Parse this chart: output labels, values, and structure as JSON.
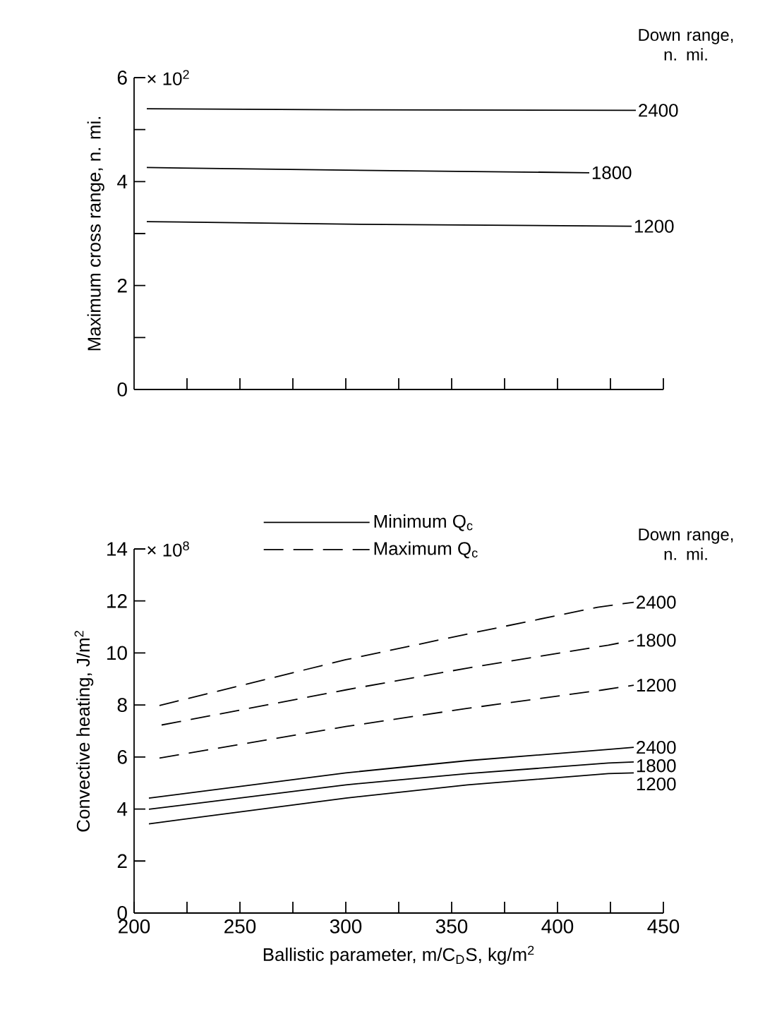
{
  "chart_data": [
    {
      "type": "line",
      "ylabel": "Maximum cross range, n. mi.",
      "legend_title": "Down range, n. mi.",
      "annotations": [
        "× 10$^{2}$"
      ],
      "xlim": [
        200,
        450
      ],
      "ylim": [
        0,
        6
      ],
      "tick_labels": "y",
      "xticks": [
        {
          "value": 225,
          "label": null
        },
        {
          "value": 250,
          "label": null
        },
        {
          "value": 275,
          "label": null
        },
        {
          "value": 300,
          "label": null
        },
        {
          "value": 325,
          "label": null
        },
        {
          "value": 350,
          "label": null
        },
        {
          "value": 375,
          "label": null
        },
        {
          "value": 400,
          "label": null
        },
        {
          "value": 425,
          "label": null
        },
        {
          "value": 450,
          "label": null
        }
      ],
      "yticks": [
        0,
        {
          "value": 1,
          "label": null
        },
        2,
        {
          "value": 3,
          "label": null
        },
        4,
        {
          "value": 5,
          "label": null
        },
        6
      ],
      "series": [
        {
          "name": "2400",
          "color": "#000000",
          "line_style": "solid",
          "x": [
            206,
            300,
            437
          ],
          "values": [
            5.4,
            5.38,
            5.37
          ]
        },
        {
          "name": "1800",
          "color": "#000000",
          "line_style": "solid",
          "x": [
            206,
            300,
            415
          ],
          "values": [
            4.27,
            4.22,
            4.17
          ]
        },
        {
          "name": "1200",
          "color": "#000000",
          "line_style": "solid",
          "x": [
            206,
            300,
            435
          ],
          "values": [
            3.23,
            3.18,
            3.14
          ]
        }
      ]
    },
    {
      "type": "line",
      "xlabel": "Ballistic parameter, m/C$_{D}$S, kg/m$^{2}$",
      "ylabel": "Convective heating, J/m$^{2}$",
      "legend_title": "Down range, n. mi.",
      "legend": "top",
      "annotations": [
        "× 10$^{8}$",
        "Minimum Q$_{c}$",
        "Maximum Q$_{c}$"
      ],
      "xlim": [
        200,
        450
      ],
      "ylim": [
        0,
        14
      ],
      "xticks": [
        200,
        {
          "value": 225,
          "label": null
        },
        250,
        {
          "value": 275,
          "label": null
        },
        300,
        {
          "value": 325,
          "label": null
        },
        350,
        {
          "value": 375,
          "label": null
        },
        400,
        {
          "value": 425,
          "label": null
        },
        450
      ],
      "yticks": [
        0,
        2,
        4,
        6,
        8,
        10,
        12,
        14
      ],
      "series": [
        {
          "name": "2400",
          "color": "#000000",
          "line_style": "solid",
          "x": [
            207,
            300,
            357.5,
            424,
            436
          ],
          "values": [
            4.42,
            5.39,
            5.86,
            6.29,
            6.37
          ]
        },
        {
          "name": "1800",
          "color": "#000000",
          "line_style": "solid",
          "x": [
            207,
            300,
            357.5,
            424,
            436
          ],
          "values": [
            3.99,
            4.93,
            5.36,
            5.77,
            5.81
          ]
        },
        {
          "name": "1200",
          "color": "#000000",
          "line_style": "solid",
          "x": [
            207,
            300,
            357.5,
            424,
            436
          ],
          "values": [
            3.43,
            4.42,
            4.93,
            5.36,
            5.39
          ]
        },
        {
          "name": "2400",
          "color": "#000000",
          "line_style": "dashed",
          "x": [
            212,
            300,
            357.5,
            419,
            436
          ],
          "values": [
            7.98,
            9.74,
            10.73,
            11.76,
            11.95
          ]
        },
        {
          "name": "1800",
          "color": "#000000",
          "line_style": "dashed",
          "x": [
            213,
            300,
            357.5,
            424,
            436
          ],
          "values": [
            7.23,
            8.58,
            9.42,
            10.3,
            10.49
          ]
        },
        {
          "name": "1200",
          "color": "#000000",
          "line_style": "dashed",
          "x": [
            212,
            300,
            357.5,
            421.5,
            436
          ],
          "values": [
            5.96,
            7.17,
            7.87,
            8.58,
            8.76
          ]
        }
      ]
    }
  ]
}
